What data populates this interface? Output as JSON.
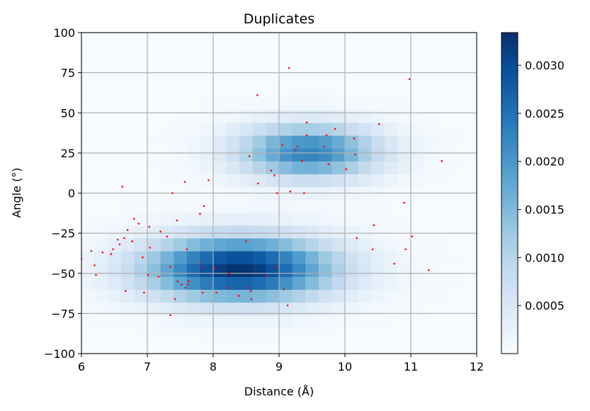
{
  "chart_data": {
    "type": "heatmap",
    "title": "Duplicates",
    "xlabel": "Distance (Å)",
    "ylabel": "Angle (°)",
    "xlim": [
      6,
      12
    ],
    "ylim": [
      -100,
      100
    ],
    "x_ticks": [
      6,
      7,
      8,
      9,
      10,
      11,
      12
    ],
    "y_ticks": [
      -100,
      -75,
      -50,
      -25,
      0,
      25,
      50,
      75,
      100
    ],
    "grid": true,
    "colormap": "Blues",
    "colorbar": {
      "range": [
        0,
        0.00334
      ],
      "ticks": [
        0.0005,
        0.001,
        0.0015,
        0.002,
        0.0025,
        0.003
      ],
      "tick_labels": [
        "0.0005",
        "0.0010",
        "0.0015",
        "0.0020",
        "0.0025",
        "0.0030"
      ]
    },
    "density_components": [
      {
        "center": [
          8.4,
          -47
        ],
        "sigma": [
          1.0,
          14
        ],
        "peak": 0.0033
      },
      {
        "center": [
          9.45,
          26
        ],
        "sigma": [
          0.75,
          12
        ],
        "peak": 0.0023
      }
    ],
    "scatter_color": "#ff0000",
    "points": [
      [
        6.0,
        -41
      ],
      [
        6.15,
        -36
      ],
      [
        6.2,
        -45
      ],
      [
        6.22,
        -51
      ],
      [
        6.32,
        -37
      ],
      [
        6.45,
        -38
      ],
      [
        6.48,
        -35
      ],
      [
        6.55,
        -29
      ],
      [
        6.58,
        -32
      ],
      [
        6.62,
        4
      ],
      [
        6.65,
        -28
      ],
      [
        6.67,
        -61
      ],
      [
        6.7,
        -23
      ],
      [
        6.77,
        -30
      ],
      [
        6.8,
        -16
      ],
      [
        6.87,
        -19
      ],
      [
        6.93,
        -40
      ],
      [
        6.95,
        -62
      ],
      [
        7.01,
        -51
      ],
      [
        7.03,
        -21
      ],
      [
        7.04,
        -34
      ],
      [
        7.17,
        -52
      ],
      [
        7.2,
        -24
      ],
      [
        7.3,
        -27
      ],
      [
        7.35,
        -46
      ],
      [
        7.35,
        -76
      ],
      [
        7.38,
        0
      ],
      [
        7.42,
        -66
      ],
      [
        7.45,
        -17
      ],
      [
        7.46,
        -55
      ],
      [
        7.52,
        -57
      ],
      [
        7.57,
        7
      ],
      [
        7.58,
        -59
      ],
      [
        7.6,
        -35
      ],
      [
        7.62,
        -55
      ],
      [
        7.61,
        -57
      ],
      [
        7.8,
        -13
      ],
      [
        7.82,
        -43
      ],
      [
        7.83,
        -46
      ],
      [
        7.84,
        -62
      ],
      [
        7.86,
        -8
      ],
      [
        7.93,
        8
      ],
      [
        8.02,
        -47
      ],
      [
        8.05,
        -62
      ],
      [
        8.22,
        -59
      ],
      [
        8.24,
        -50
      ],
      [
        8.39,
        -64
      ],
      [
        8.5,
        -30
      ],
      [
        8.52,
        -59
      ],
      [
        8.55,
        23
      ],
      [
        8.57,
        -61
      ],
      [
        8.58,
        -66
      ],
      [
        8.67,
        61
      ],
      [
        8.68,
        6
      ],
      [
        8.82,
        -52
      ],
      [
        8.88,
        14
      ],
      [
        8.93,
        11
      ],
      [
        8.95,
        -46
      ],
      [
        8.97,
        0
      ],
      [
        9.05,
        30
      ],
      [
        9.07,
        -60
      ],
      [
        9.13,
        -70
      ],
      [
        9.15,
        78
      ],
      [
        9.17,
        1
      ],
      [
        9.25,
        27
      ],
      [
        9.28,
        29
      ],
      [
        9.35,
        20
      ],
      [
        9.38,
        0
      ],
      [
        9.42,
        44
      ],
      [
        9.42,
        36
      ],
      [
        9.68,
        29
      ],
      [
        9.72,
        36
      ],
      [
        9.75,
        18
      ],
      [
        9.85,
        40
      ],
      [
        10.02,
        15
      ],
      [
        10.14,
        34
      ],
      [
        10.16,
        24
      ],
      [
        10.18,
        -28
      ],
      [
        10.42,
        -35
      ],
      [
        10.44,
        -20
      ],
      [
        10.52,
        43
      ],
      [
        10.75,
        -44
      ],
      [
        10.9,
        -6
      ],
      [
        10.92,
        -35
      ],
      [
        10.98,
        71
      ],
      [
        11.02,
        -27
      ],
      [
        11.27,
        -48
      ],
      [
        11.47,
        20
      ]
    ]
  }
}
